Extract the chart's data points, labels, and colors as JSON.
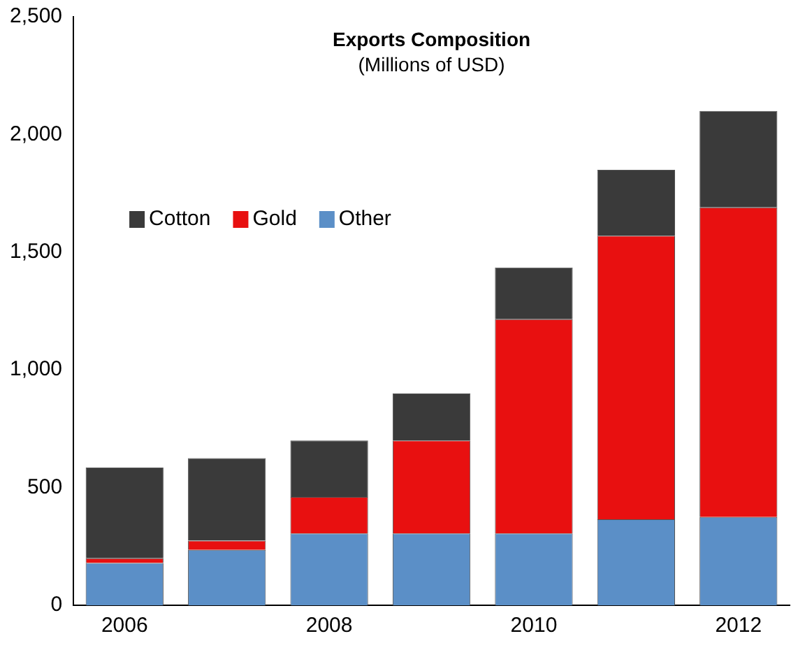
{
  "chart_data": {
    "type": "bar",
    "title": "Exports Composition",
    "subtitle": "(Millions of USD)",
    "categories": [
      "2006",
      null,
      "2008",
      null,
      "2010",
      null,
      "2012"
    ],
    "stacked": true,
    "legend": "top left",
    "grid": false,
    "ylim": [
      0,
      2500
    ],
    "yticks": [
      0,
      500,
      {
        "value": 1000,
        "label": "1,000"
      },
      {
        "value": 1500,
        "label": "1,500"
      },
      {
        "value": 2000,
        "label": "2,000"
      },
      {
        "value": 2500,
        "label": "2,500"
      }
    ],
    "series": [
      {
        "name": "Other",
        "color": "#5b8fc7",
        "values": [
          180,
          235,
          305,
          305,
          305,
          365,
          375
        ]
      },
      {
        "name": "Gold",
        "color": "#e81010",
        "values": [
          20,
          40,
          155,
          395,
          910,
          1205,
          1315
        ]
      },
      {
        "name": "Cotton",
        "color": "#3a3a3a",
        "values": [
          385,
          350,
          240,
          200,
          220,
          280,
          410
        ]
      }
    ]
  }
}
